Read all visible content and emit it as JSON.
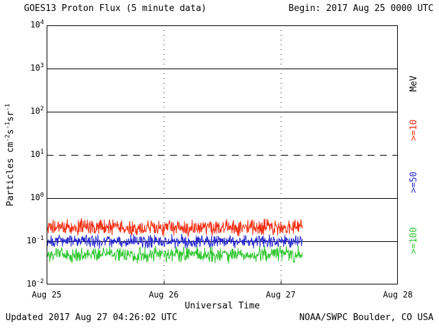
{
  "header": {
    "title": "GOES13 Proton Flux (5 minute data)",
    "begin_label": "Begin: 2017 Aug 25 0000 UTC"
  },
  "footer": {
    "updated": "Updated 2017 Aug 27 04:26:02 UTC",
    "source": "NOAA/SWPC Boulder, CO USA"
  },
  "chart_data": {
    "type": "line",
    "title": "GOES13 Proton Flux (5 minute data)",
    "xlabel": "Universal Time",
    "ylabel_parts": [
      {
        "t": "Particles cm"
      },
      {
        "s": "-2"
      },
      {
        "t": "s"
      },
      {
        "s": "-1"
      },
      {
        "t": "sr"
      },
      {
        "s": "-1"
      }
    ],
    "right_axis_label": "MeV",
    "x_tick_labels": [
      "Aug 25",
      "Aug 26",
      "Aug 27",
      "Aug 28"
    ],
    "x_range_days": 3,
    "y_scale": "log10",
    "y_log_min": -2,
    "y_log_max": 4,
    "y_tick_exponents": [
      4,
      3,
      2,
      1,
      0,
      -1,
      -2
    ],
    "points_per_day": 288,
    "data_end_days": 2.185,
    "grid": "partial",
    "legend_position": "right",
    "hlines": [
      {
        "log": 3,
        "style": "solid"
      },
      {
        "log": 2,
        "style": "solid"
      },
      {
        "log": 1,
        "style": "dashed"
      },
      {
        "log": 0,
        "style": "solid"
      },
      {
        "log": -1,
        "style": "solid"
      }
    ],
    "vlines_days": [
      1,
      2
    ],
    "series": [
      {
        "name": ">=10",
        "unit": "MeV",
        "color": "#f62b10",
        "base_flux": 0.21,
        "noise_log": 0.22,
        "approx_min": 0.13,
        "approx_max": 0.38
      },
      {
        "name": ">=50",
        "unit": "MeV",
        "color": "#2525cd",
        "base_flux": 0.1,
        "noise_log": 0.18,
        "approx_min": 0.065,
        "approx_max": 0.16
      },
      {
        "name": ">=100",
        "unit": "MeV",
        "color": "#2fc62f",
        "base_flux": 0.05,
        "noise_log": 0.22,
        "approx_min": 0.028,
        "approx_max": 0.09
      }
    ]
  }
}
